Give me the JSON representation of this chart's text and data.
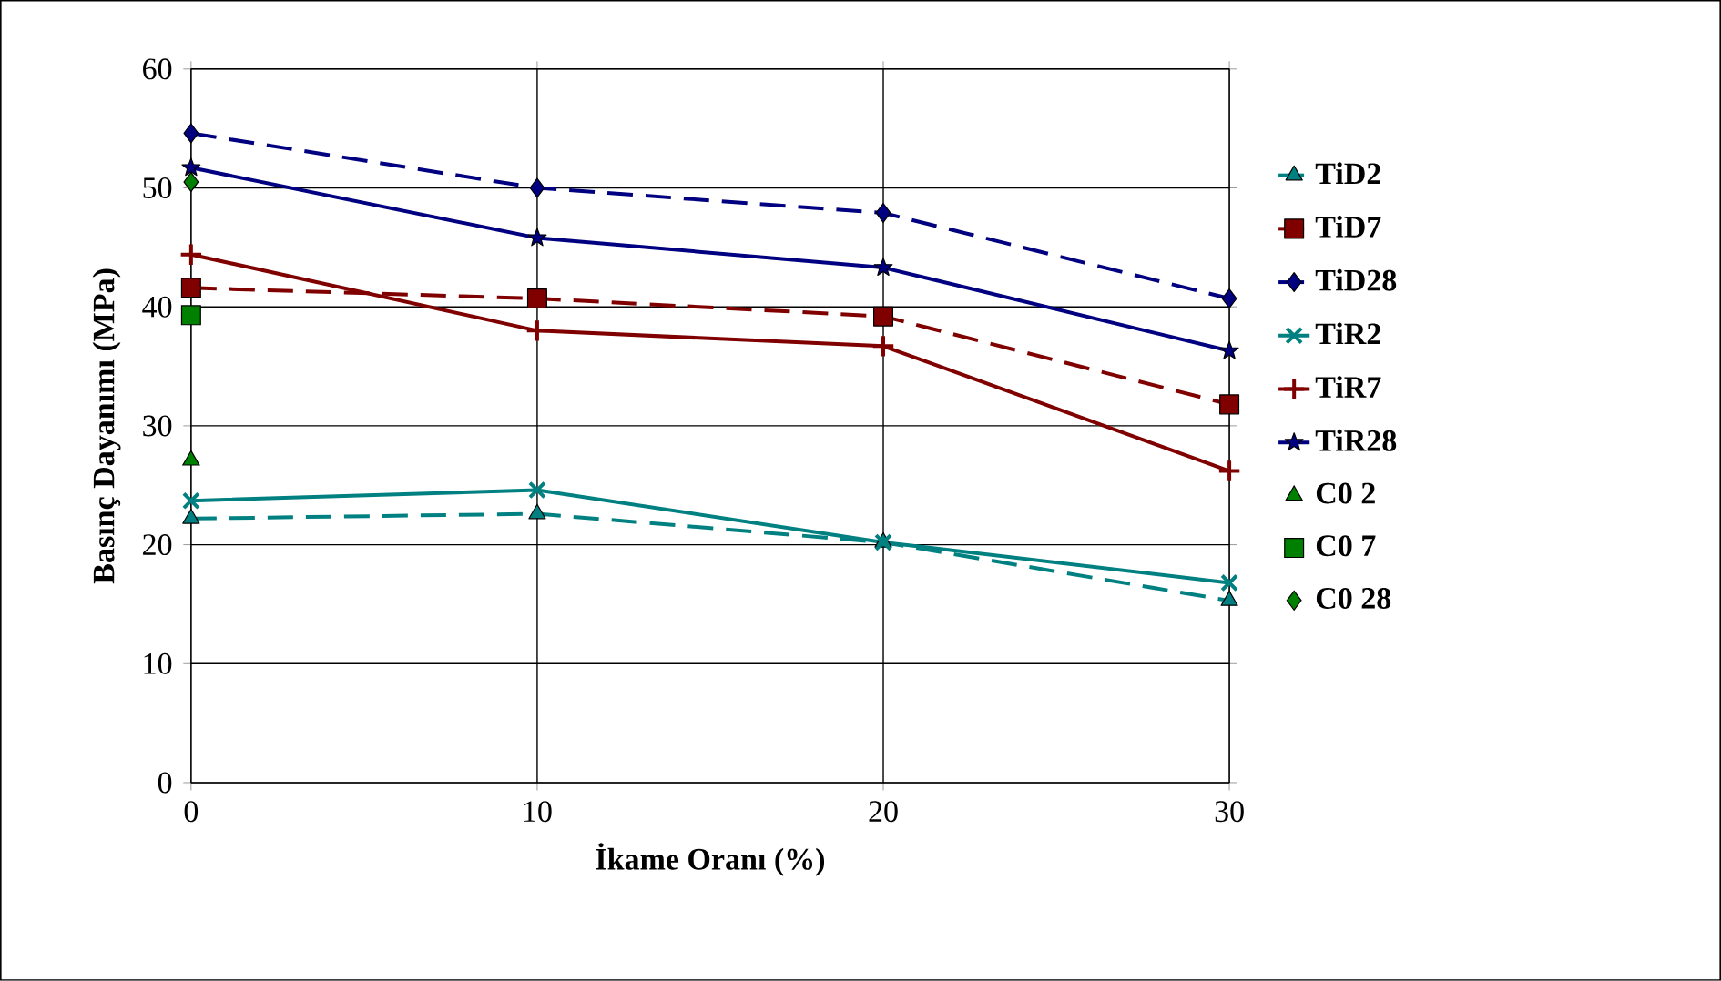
{
  "chart_data": {
    "type": "line",
    "xlabel": "İkame Oranı (%)",
    "ylabel": "Basınç Dayanımı (MPa)",
    "x": [
      0,
      10,
      20,
      30
    ],
    "xlim": [
      0,
      30
    ],
    "xticks": [
      0,
      10,
      20,
      30
    ],
    "ylim": [
      0,
      60
    ],
    "yticks": [
      0,
      10,
      20,
      30,
      40,
      50,
      60
    ],
    "grid": true,
    "legend": "right",
    "series": [
      {
        "name": "TiD2",
        "color": "#008080",
        "values": [
          22.2,
          22.6,
          20.2,
          15.3
        ],
        "marker": "triangle",
        "line_style": "dashed"
      },
      {
        "name": "TiD7",
        "color": "#800000",
        "values": [
          41.6,
          40.7,
          39.2,
          31.8
        ],
        "marker": "square",
        "line_style": "dashed"
      },
      {
        "name": "TiD28",
        "color": "#000080",
        "values": [
          54.6,
          50.0,
          47.9,
          40.7
        ],
        "marker": "diamond",
        "line_style": "dashed"
      },
      {
        "name": "TiR2",
        "color": "#008080",
        "values": [
          23.7,
          24.6,
          20.2,
          16.8
        ],
        "marker": "cross",
        "line_style": "solid"
      },
      {
        "name": "TiR7",
        "color": "#800000",
        "values": [
          44.4,
          38.0,
          36.7,
          26.2
        ],
        "marker": "plus",
        "line_style": "solid"
      },
      {
        "name": "TiR28",
        "color": "#000080",
        "values": [
          51.7,
          45.8,
          43.3,
          36.3
        ],
        "marker": "star",
        "line_style": "solid"
      },
      {
        "name": "C0 2",
        "type": "scatter",
        "color": "#008000",
        "values": [
          27.1,
          null,
          null,
          null
        ],
        "marker": "triangle"
      },
      {
        "name": "C0 7",
        "type": "scatter",
        "color": "#008000",
        "values": [
          39.3,
          null,
          null,
          null
        ],
        "marker": "square"
      },
      {
        "name": "C0 28",
        "type": "scatter",
        "color": "#008000",
        "values": [
          50.5,
          null,
          null,
          null
        ],
        "marker": "diamond"
      }
    ]
  }
}
